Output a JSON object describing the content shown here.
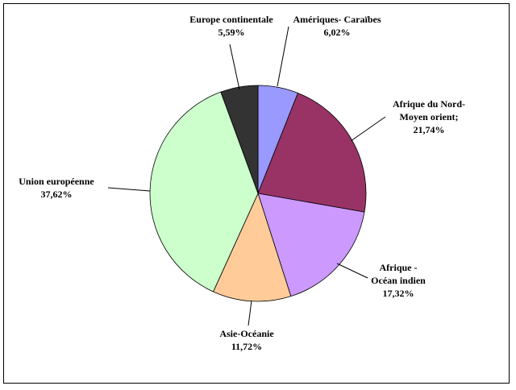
{
  "chart_data": {
    "type": "pie",
    "title": "",
    "slices": [
      {
        "name": "Amériques- Caraïbes",
        "name_lines": [
          "Amériques- Caraïbes"
        ],
        "label": "6,02%",
        "value": 6.02,
        "color": "#9999FF"
      },
      {
        "name": "Afrique du Nord- Moyen orient;",
        "name_lines": [
          "Afrique du Nord-",
          "Moyen orient;"
        ],
        "label": "21,74%",
        "value": 21.74,
        "color": "#993366"
      },
      {
        "name": "Afrique - Océan indien",
        "name_lines": [
          "Afrique -",
          "Océan indien"
        ],
        "label": "17,32%",
        "value": 17.32,
        "color": "#CC99FF"
      },
      {
        "name": "Asie-Océanie",
        "name_lines": [
          "Asie-Océanie"
        ],
        "label": "11,72%",
        "value": 11.72,
        "color": "#FFCC99"
      },
      {
        "name": "Union européenne",
        "name_lines": [
          "Union européenne"
        ],
        "label": "37,62%",
        "value": 37.62,
        "color": "#CCFFCC"
      },
      {
        "name": "Europe continentale",
        "name_lines": [
          "Europe continentale"
        ],
        "label": "5,59%",
        "value": 5.59,
        "color": "#333333"
      }
    ],
    "legend": "none",
    "data_labels": "outside with leader lines"
  }
}
